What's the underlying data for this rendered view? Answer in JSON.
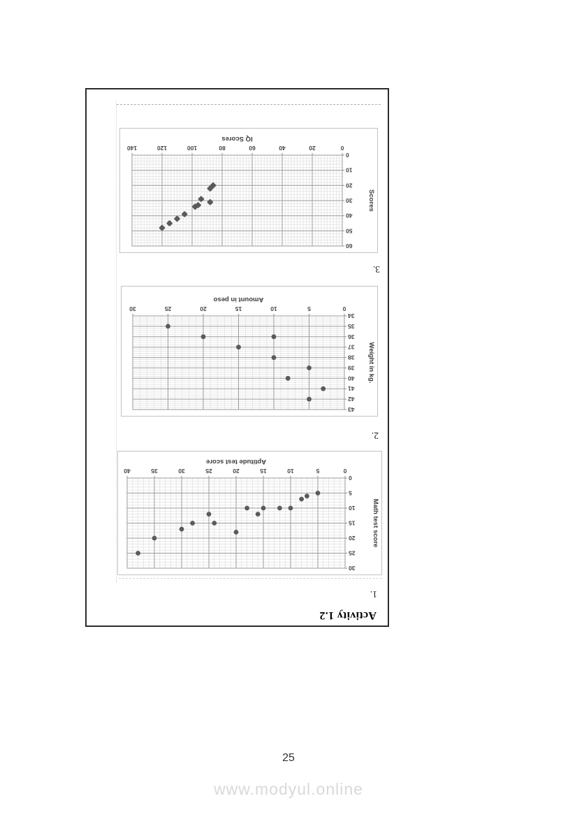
{
  "page": {
    "number": "25",
    "watermark": "www.modyul.online"
  },
  "worksheet": {
    "heading": "Activity 1.2",
    "item_labels": [
      "1.",
      "2.",
      "3."
    ]
  },
  "chart_data": [
    {
      "type": "scatter",
      "item": "1.",
      "xlabel": "Aptitude test score",
      "ylabel": "Math test score",
      "xlim": [
        0,
        40
      ],
      "ylim": [
        0,
        30
      ],
      "x_major": 5,
      "x_minor": 1,
      "y_major": 5,
      "y_minor": 1,
      "grid": true,
      "marker": "circle",
      "point_color": "#5a5a5a",
      "points": [
        [
          5,
          5
        ],
        [
          7,
          6
        ],
        [
          8,
          7
        ],
        [
          10,
          10
        ],
        [
          12,
          10
        ],
        [
          15,
          10
        ],
        [
          16,
          12
        ],
        [
          18,
          10
        ],
        [
          20,
          18
        ],
        [
          24,
          15
        ],
        [
          25,
          12
        ],
        [
          28,
          15
        ],
        [
          30,
          17
        ],
        [
          35,
          20
        ],
        [
          38,
          25
        ]
      ]
    },
    {
      "type": "scatter",
      "item": "2.",
      "xlabel": "Amount in peso",
      "ylabel": "Weight in kg.",
      "xlim": [
        0,
        30
      ],
      "ylim": [
        34,
        43
      ],
      "x_major": 5,
      "x_minor": 1,
      "y_major": 1,
      "y_minor": 0.2,
      "grid": true,
      "marker": "circle",
      "point_color": "#5a5a5a",
      "points": [
        [
          3,
          41
        ],
        [
          5,
          39
        ],
        [
          5,
          42
        ],
        [
          8,
          40
        ],
        [
          10,
          36
        ],
        [
          10,
          38
        ],
        [
          15,
          37
        ],
        [
          20,
          36
        ],
        [
          25,
          35
        ]
      ]
    },
    {
      "type": "scatter",
      "item": "3.",
      "xlabel": "IQ Scores",
      "ylabel": "Scores",
      "xlim": [
        0,
        140
      ],
      "ylim": [
        0,
        60
      ],
      "x_major": 20,
      "x_minor": 2,
      "y_major": 10,
      "y_minor": 2,
      "grid": true,
      "marker": "diamond",
      "point_color": "#5a5a5a",
      "points": [
        [
          86,
          20
        ],
        [
          88,
          22
        ],
        [
          88,
          31
        ],
        [
          94,
          29
        ],
        [
          96,
          33
        ],
        [
          98,
          34
        ],
        [
          105,
          39
        ],
        [
          110,
          42
        ],
        [
          115,
          45
        ],
        [
          120,
          48
        ]
      ]
    }
  ]
}
